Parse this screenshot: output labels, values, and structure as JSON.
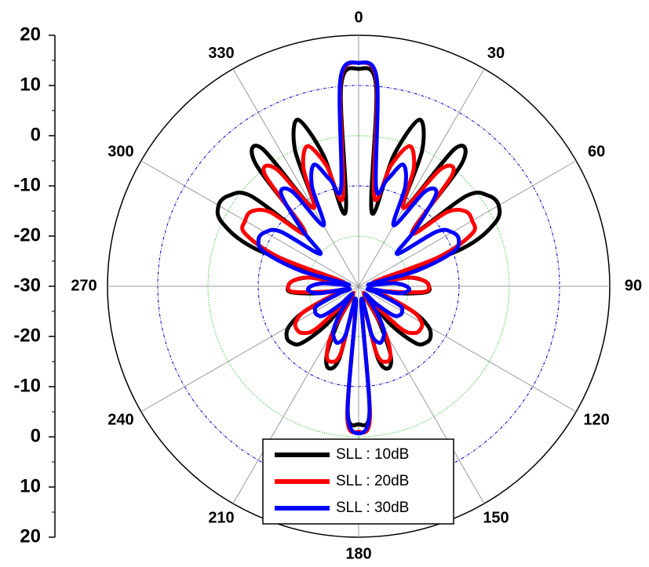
{
  "chart_data": {
    "type": "polar",
    "x": [
      0,
      5,
      10,
      15,
      20,
      25,
      30,
      35,
      40,
      45,
      50,
      55,
      60,
      65,
      70,
      75,
      80,
      85,
      90,
      95,
      100,
      105,
      110,
      115,
      120,
      125,
      130,
      135,
      140,
      145,
      150,
      155,
      160,
      165,
      170,
      175,
      180,
      185,
      190,
      195,
      200,
      205,
      210,
      215,
      220,
      225,
      230,
      235,
      240,
      245,
      250,
      255,
      260,
      265,
      270,
      275,
      280,
      285,
      290,
      295,
      300,
      305,
      310,
      315,
      320,
      325,
      330,
      335,
      340,
      345,
      350,
      355
    ],
    "series": [
      {
        "name": "SLL : 10dB",
        "color": "#000000",
        "values": [
          13.3,
          10,
          -15,
          -3,
          5.3,
          0,
          -12,
          3.5,
          2,
          -15,
          -2,
          1.5,
          2.2,
          0,
          -8,
          -25,
          -20,
          -17,
          -16,
          -16.5,
          -22,
          -28,
          -25,
          -18,
          -14,
          -12.5,
          -12.5,
          -14,
          -20,
          -28,
          -22,
          -15,
          -12.6,
          -15,
          -26,
          -5,
          -2.5,
          -5,
          -26,
          -15,
          -12.6,
          -15,
          -22,
          -28,
          -20,
          -14,
          -12.5,
          -12.5,
          -14,
          -18,
          -25,
          -28,
          -22,
          -16.5,
          -16,
          -17,
          -20,
          -25,
          -8,
          0,
          2.2,
          1.5,
          -2,
          -15,
          2,
          3.5,
          -12,
          0,
          5.3,
          -3,
          -15,
          10
        ]
      },
      {
        "name": "SLL : 20dB",
        "color": "#ff0000",
        "values": [
          14.5,
          11,
          -12,
          -5,
          -0.3,
          -4,
          -12,
          -1.5,
          -1,
          -15,
          -7,
          -4,
          -3.9,
          -5,
          -13,
          -27,
          -20,
          -17,
          -16,
          -17,
          -24,
          -28,
          -24,
          -18,
          -15.5,
          -15,
          -15.5,
          -18,
          -26,
          -28,
          -20,
          -15,
          -14,
          -16,
          -26,
          -4,
          -1,
          -4,
          -26,
          -16,
          -14,
          -15,
          -20,
          -28,
          -26,
          -18,
          -15.5,
          -15,
          -15.5,
          -18,
          -24,
          -28,
          -24,
          -17,
          -16,
          -17,
          -20,
          -27,
          -13,
          -5,
          -3.9,
          -4,
          -7,
          -15,
          -1,
          -1.5,
          -12,
          -4,
          -0.3,
          -5,
          -12,
          11
        ]
      },
      {
        "name": "SLL : 30dB",
        "color": "#0000ff",
        "values": [
          14.5,
          11.5,
          -10,
          -8,
          -4.2,
          -8,
          -16,
          -7,
          -6,
          -14,
          -20,
          -11,
          -8.5,
          -8,
          -10,
          -18,
          -28,
          -23,
          -20.5,
          -20,
          -22,
          -28,
          -26,
          -21,
          -20,
          -20,
          -21,
          -25,
          -28,
          -24,
          -20,
          -18.5,
          -18,
          -20,
          -27,
          -5,
          -0.7,
          -5,
          -27,
          -20,
          -18,
          -18.5,
          -20,
          -24,
          -28,
          -25,
          -21,
          -20,
          -20,
          -21,
          -26,
          -28,
          -22,
          -20,
          -20.5,
          -23,
          -28,
          -18,
          -10,
          -8,
          -8.5,
          -11,
          -20,
          -14,
          -6,
          -7,
          -16,
          -8,
          -4.2,
          -8,
          -10,
          11.5
        ]
      }
    ],
    "ylim": [
      -30,
      20
    ],
    "yticks": [
      -30,
      -20,
      -10,
      0,
      10,
      20
    ],
    "xticks": [
      0,
      30,
      60,
      90,
      120,
      150,
      180,
      210,
      240,
      270,
      300,
      330
    ],
    "grid": true,
    "grid_colors": [
      "#0000cc",
      "#00bb00"
    ],
    "legend": "bottom"
  }
}
